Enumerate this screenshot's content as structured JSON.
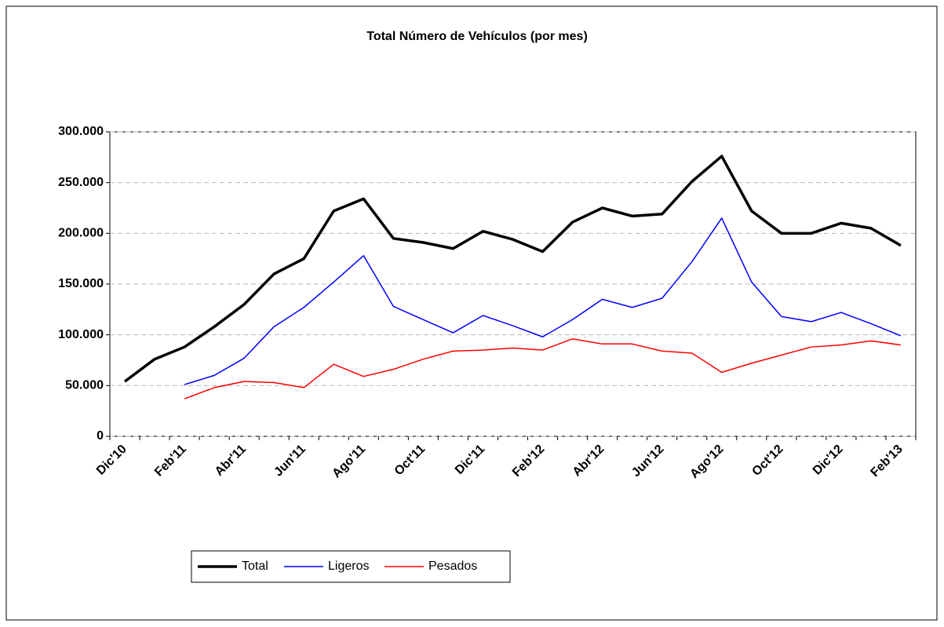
{
  "chart_data": {
    "type": "line",
    "title": "Total Número de Vehículos (por mes)",
    "categories": [
      "Dic'10",
      null,
      "Feb'11",
      null,
      "Abr'11",
      null,
      "Jun'11",
      null,
      "Ago'11",
      null,
      "Oct'11",
      null,
      "Dic'11",
      null,
      "Feb'12",
      null,
      "Abr'12",
      null,
      "Jun'12",
      null,
      "Ago'12",
      null,
      "Oct'12",
      null,
      "Dic'12",
      null,
      "Feb'13"
    ],
    "series": [
      {
        "name": "Total",
        "color": "#000000",
        "values": [
          54000,
          76000,
          88000,
          108000,
          130000,
          160000,
          175000,
          222000,
          234000,
          195000,
          191000,
          185000,
          202000,
          194000,
          182000,
          211000,
          225000,
          217000,
          219000,
          251000,
          276000,
          222000,
          200000,
          200000,
          210000,
          205000,
          188000
        ]
      },
      {
        "name": "Ligeros",
        "color": "#0000ff",
        "values": [
          null,
          null,
          51000,
          60000,
          77000,
          108000,
          127000,
          152000,
          178000,
          128000,
          115000,
          102000,
          119000,
          109000,
          98000,
          115000,
          135000,
          127000,
          136000,
          172000,
          215000,
          152000,
          118000,
          113000,
          122000,
          111000,
          99000
        ]
      },
      {
        "name": "Pesados",
        "color": "#ff0000",
        "values": [
          null,
          null,
          37000,
          48000,
          54000,
          53000,
          48000,
          71000,
          59000,
          66000,
          76000,
          84000,
          85000,
          87000,
          85000,
          96000,
          91000,
          91000,
          84000,
          82000,
          63000,
          72000,
          80000,
          88000,
          90000,
          94000,
          90000
        ]
      }
    ],
    "ylim": [
      0,
      300000
    ],
    "yticks": [
      0,
      {
        "value": 50000,
        "label": "50.000"
      },
      {
        "value": 100000,
        "label": "100.000"
      },
      {
        "value": 150000,
        "label": "150.000"
      },
      {
        "value": 200000,
        "label": "200.000"
      },
      {
        "value": 250000,
        "label": "250.000"
      },
      {
        "value": 300000,
        "label": "300.000"
      }
    ],
    "grid": true,
    "legend": "bottom"
  }
}
